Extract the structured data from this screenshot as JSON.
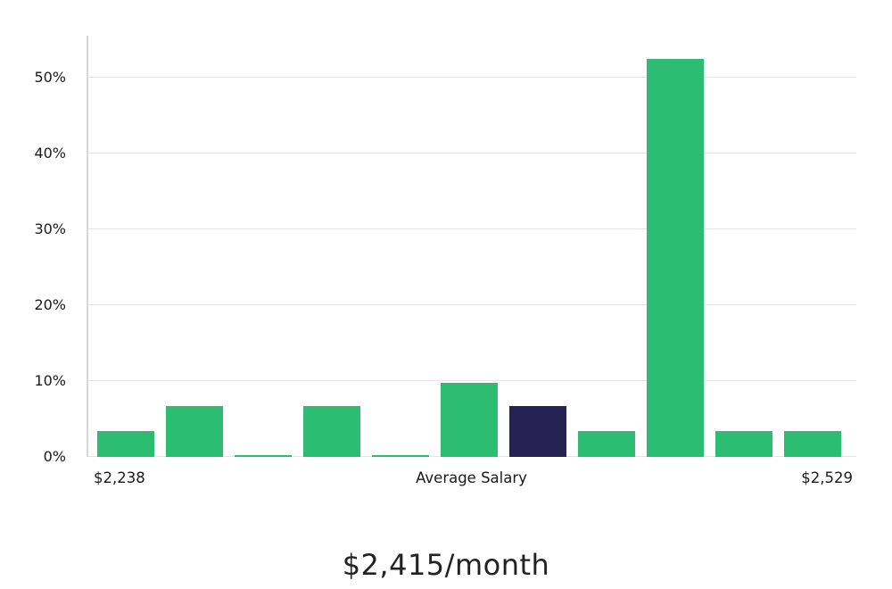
{
  "chart_data": {
    "type": "bar",
    "values": [
      3.4,
      6.7,
      0.2,
      6.7,
      0.2,
      9.8,
      6.7,
      3.4,
      52.5,
      3.4,
      3.4
    ],
    "highlight_index": 6,
    "yticks": [
      0,
      10,
      20,
      30,
      40,
      50
    ],
    "ytick_suffix": "%",
    "ylim": [
      0,
      55.5
    ],
    "grid": "horizontal",
    "legend": "none",
    "x_axis": {
      "left_label": "$2,238",
      "center_label": "Average Salary",
      "right_label": "$2,529"
    },
    "title": "$2,415/month",
    "colors": {
      "bar": "#2dbd72",
      "highlight": "#272254",
      "gridline": "#e5e5e5",
      "axis": "#d6d6d6",
      "text": "#1a1a1a"
    }
  }
}
